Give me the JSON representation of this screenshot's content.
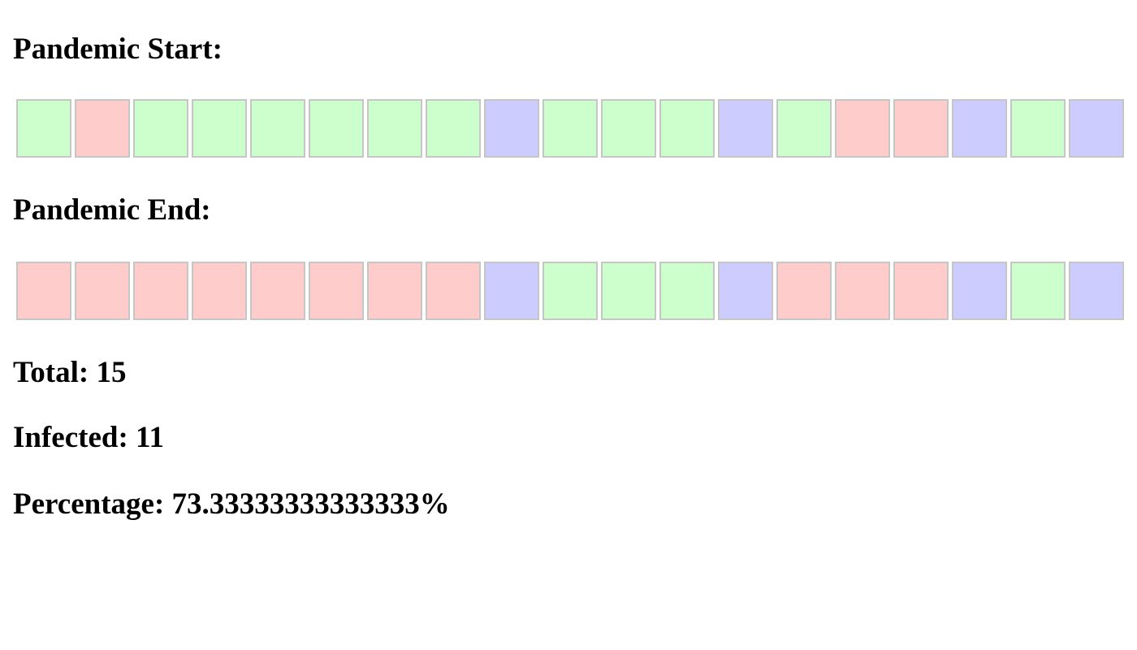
{
  "start": {
    "label": "Pandemic Start:",
    "cells": [
      "healthy",
      "infected",
      "healthy",
      "healthy",
      "healthy",
      "healthy",
      "healthy",
      "healthy",
      "immune",
      "healthy",
      "healthy",
      "healthy",
      "immune",
      "healthy",
      "infected",
      "infected",
      "immune",
      "healthy",
      "immune"
    ]
  },
  "end": {
    "label": "Pandemic End:",
    "cells": [
      "infected",
      "infected",
      "infected",
      "infected",
      "infected",
      "infected",
      "infected",
      "infected",
      "immune",
      "healthy",
      "healthy",
      "healthy",
      "immune",
      "infected",
      "infected",
      "infected",
      "immune",
      "healthy",
      "immune"
    ]
  },
  "stats": {
    "total_label": "Total:",
    "total_value": "15",
    "infected_label": "Infected:",
    "infected_value": "11",
    "percentage_label": "Percentage:",
    "percentage_value": "73.33333333333333%"
  },
  "colors": {
    "healthy": "#ccffcc",
    "infected": "#ffcccc",
    "immune": "#ccccff",
    "cell_border": "#c6c6c6"
  }
}
